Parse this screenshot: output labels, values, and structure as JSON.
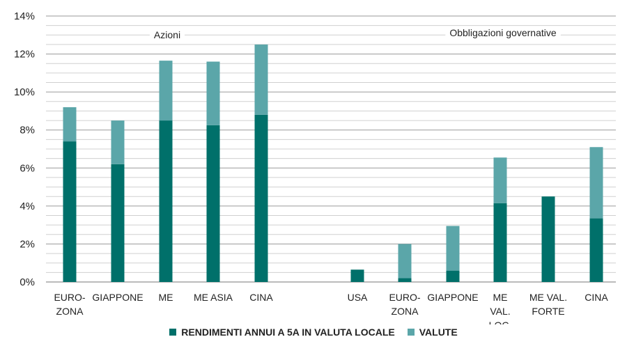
{
  "chart_data": {
    "type": "bar",
    "stacked": true,
    "ylim": [
      0,
      14
    ],
    "yticks": [
      "0%",
      "2%",
      "4%",
      "6%",
      "8%",
      "10%",
      "12%",
      "14%"
    ],
    "grid": true,
    "groups": [
      {
        "label": "Azioni",
        "categories": [
          [
            "EURO-",
            "ZONA"
          ],
          [
            "GIAPPONE"
          ],
          [
            "ME"
          ],
          [
            "ME ASIA"
          ],
          [
            "CINA"
          ]
        ]
      },
      {
        "label": "Obbligazioni governative",
        "categories": [
          [
            "USA"
          ],
          [
            "EURO-",
            "ZONA"
          ],
          [
            "GIAPPONE"
          ],
          [
            "ME",
            "VAL.",
            "LOC."
          ],
          [
            "ME VAL.",
            "FORTE"
          ],
          [
            "CINA"
          ]
        ]
      }
    ],
    "series": [
      {
        "name": "RENDIMENTI ANNUI A 5A IN VALUTA LOCALE",
        "color": "#00706a",
        "values": [
          7.4,
          6.2,
          8.5,
          8.25,
          8.8,
          0.65,
          0.2,
          0.6,
          4.15,
          4.5,
          3.35
        ]
      },
      {
        "name": "VALUTE",
        "color": "#5ba6a9",
        "values": [
          1.8,
          2.3,
          3.15,
          3.35,
          3.7,
          0,
          1.8,
          2.35,
          2.4,
          0,
          3.75
        ]
      }
    ],
    "legend_position": "bottom-center"
  }
}
